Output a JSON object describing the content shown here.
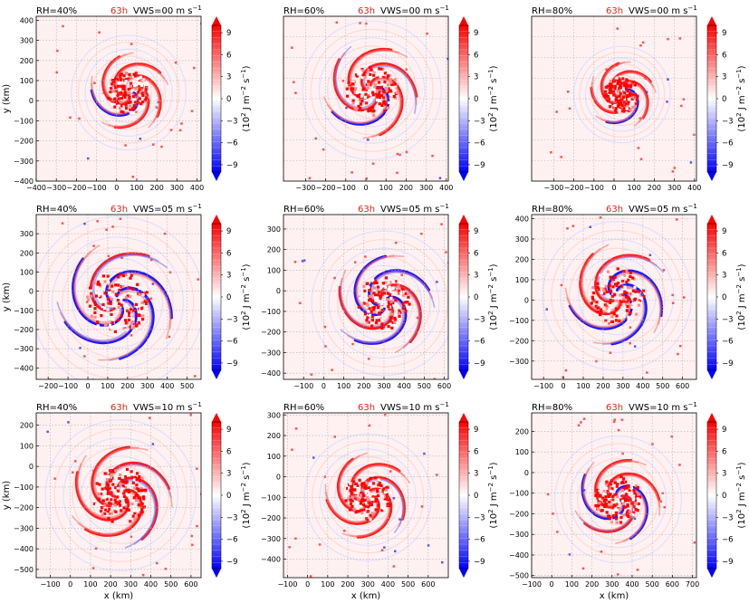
{
  "figure": {
    "time_label": "63h",
    "time_color": "#e2231a",
    "x_axis_label": "x (km)",
    "y_axis_label": "y (km)",
    "colorbar": {
      "ticks": [
        "9",
        "6",
        "3",
        "0",
        "−3",
        "−6",
        "−9"
      ],
      "label_prefix": "(10",
      "label_exp1": "2",
      "label_mid": " J m",
      "label_exp2": "−2",
      "label_mid2": " s",
      "label_exp3": "−1",
      "label_suffix": ")",
      "colors": {
        "negative": "#0000ff",
        "neutral": "#ffffff",
        "positive": "#ff0000"
      }
    }
  },
  "chart_data": [
    {
      "type": "heatmap",
      "rh": "RH=40%",
      "vws": "VWS=00 m s",
      "vws_exp": "−1",
      "xlim": [
        -400,
        420
      ],
      "ylim": [
        -400,
        420
      ],
      "xticks": [
        -400,
        -300,
        -200,
        -100,
        0,
        100,
        200,
        300,
        400
      ],
      "yticks": [
        -400,
        -300,
        -200,
        -100,
        0,
        100,
        200,
        300,
        400
      ],
      "center": [
        60,
        40
      ],
      "radius": 190,
      "blue": 0.18,
      "red": 0.65
    },
    {
      "type": "heatmap",
      "rh": "RH=60%",
      "vws": "VWS=00 m s",
      "vws_exp": "−1",
      "xlim": [
        -410,
        410
      ],
      "ylim": [
        -400,
        400
      ],
      "xticks": [
        -300,
        -200,
        -100,
        0,
        100,
        200,
        300,
        400
      ],
      "yticks": [],
      "center": [
        30,
        40
      ],
      "radius": 230,
      "blue": 0.4,
      "red": 0.55
    },
    {
      "type": "heatmap",
      "rh": "RH=80%",
      "vws": "VWS=00 m s",
      "vws_exp": "−1",
      "xlim": [
        -410,
        410
      ],
      "ylim": [
        -400,
        400
      ],
      "xticks": [
        -300,
        -200,
        -100,
        0,
        100,
        200,
        300,
        400
      ],
      "yticks": [],
      "center": [
        40,
        20
      ],
      "radius": 160,
      "blue": 0.12,
      "red": 0.8
    },
    {
      "type": "heatmap",
      "rh": "RH=40%",
      "vws": "VWS=05 m s",
      "vws_exp": "−1",
      "xlim": [
        -260,
        570
      ],
      "ylim": [
        -460,
        400
      ],
      "xticks": [
        -200,
        -100,
        0,
        100,
        200,
        300,
        400,
        500
      ],
      "yticks": [
        -400,
        -300,
        -200,
        -100,
        0,
        100,
        200,
        300
      ],
      "center": [
        150,
        -60
      ],
      "radius": 290,
      "blue": 0.5,
      "red": 0.55
    },
    {
      "type": "heatmap",
      "rh": "RH=60%",
      "vws": "VWS=05 m s",
      "vws_exp": "−1",
      "xlim": [
        -200,
        620
      ],
      "ylim": [
        -430,
        370
      ],
      "xticks": [
        -100,
        0,
        100,
        200,
        300,
        400,
        500,
        600
      ],
      "yticks": [
        -400,
        -300,
        -200,
        -100,
        0,
        100,
        200,
        300
      ],
      "center": [
        300,
        -60
      ],
      "radius": 240,
      "blue": 0.3,
      "red": 0.65
    },
    {
      "type": "heatmap",
      "rh": "RH=80%",
      "vws": "VWS=05 m s",
      "vws_exp": "−1",
      "xlim": [
        -160,
        670
      ],
      "ylim": [
        -390,
        420
      ],
      "xticks": [
        -100,
        0,
        100,
        200,
        300,
        400,
        500,
        600
      ],
      "yticks": [
        -300,
        -200,
        -100,
        0,
        100,
        200,
        300,
        400
      ],
      "center": [
        270,
        20
      ],
      "radius": 250,
      "blue": 0.3,
      "red": 0.55
    },
    {
      "type": "heatmap",
      "rh": "RH=40%",
      "vws": "VWS=10 m s",
      "vws_exp": "−1",
      "xlim": [
        -170,
        650
      ],
      "ylim": [
        -540,
        260
      ],
      "xticks": [
        -100,
        0,
        100,
        200,
        300,
        400,
        500,
        600
      ],
      "yticks": [
        -500,
        -400,
        -300,
        -200,
        -100,
        0,
        100,
        200
      ],
      "center": [
        250,
        -140
      ],
      "radius": 250,
      "blue": 0.25,
      "red": 0.65
    },
    {
      "type": "heatmap",
      "rh": "RH=60%",
      "vws": "VWS=10 m s",
      "vws_exp": "−1",
      "xlim": [
        -120,
        700
      ],
      "ylim": [
        -490,
        310
      ],
      "xticks": [
        -100,
        0,
        100,
        200,
        300,
        400,
        500,
        600
      ],
      "yticks": [
        -400,
        -300,
        -200,
        -100,
        0,
        100,
        200,
        300
      ],
      "center": [
        300,
        -100
      ],
      "radius": 210,
      "blue": 0.2,
      "red": 0.7
    },
    {
      "type": "heatmap",
      "rh": "RH=80%",
      "vws": "VWS=10 m s",
      "vws_exp": "−1",
      "xlim": [
        -100,
        720
      ],
      "ylim": [
        -510,
        290
      ],
      "xticks": [
        -100,
        0,
        100,
        200,
        300,
        400,
        500,
        600,
        700
      ],
      "yticks": [
        -500,
        -400,
        -300,
        -200,
        -100,
        0,
        100,
        200
      ],
      "center": [
        330,
        -130
      ],
      "radius": 210,
      "blue": 0.22,
      "red": 0.7
    }
  ]
}
